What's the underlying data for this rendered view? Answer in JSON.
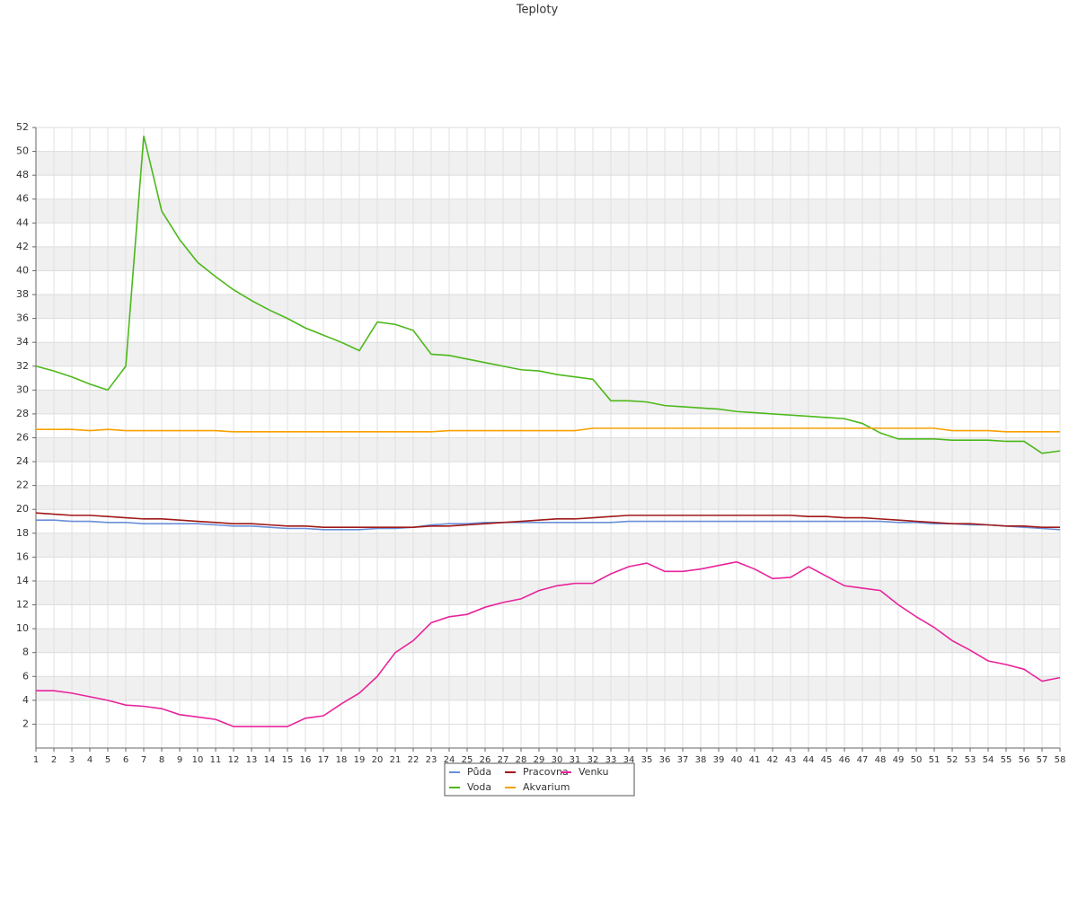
{
  "chart_data": {
    "type": "line",
    "title": "Teploty",
    "categories": [
      1,
      2,
      3,
      4,
      5,
      6,
      7,
      8,
      9,
      10,
      11,
      12,
      13,
      14,
      15,
      16,
      17,
      18,
      19,
      20,
      21,
      22,
      23,
      24,
      25,
      26,
      27,
      28,
      29,
      30,
      31,
      32,
      33,
      34,
      35,
      36,
      37,
      38,
      39,
      40,
      41,
      42,
      43,
      44,
      45,
      46,
      47,
      48,
      49,
      50,
      51,
      52,
      53,
      54,
      55,
      56,
      57,
      58
    ],
    "series": [
      {
        "name": "Půda",
        "color": "#6a8fd8",
        "values": [
          19.1,
          19.1,
          19.0,
          19.0,
          18.9,
          18.9,
          18.8,
          18.8,
          18.8,
          18.8,
          18.7,
          18.6,
          18.6,
          18.5,
          18.4,
          18.4,
          18.3,
          18.3,
          18.3,
          18.4,
          18.4,
          18.5,
          18.7,
          18.8,
          18.8,
          18.9,
          18.9,
          18.9,
          18.9,
          18.9,
          18.9,
          18.9,
          18.9,
          19.0,
          19.0,
          19.0,
          19.0,
          19.0,
          19.0,
          19.0,
          19.0,
          19.0,
          19.0,
          19.0,
          19.0,
          19.0,
          19.0,
          19.0,
          18.9,
          18.9,
          18.8,
          18.8,
          18.7,
          18.7,
          18.6,
          18.5,
          18.4,
          18.3
        ]
      },
      {
        "name": "Voda",
        "color": "#4cb81a",
        "values": [
          32.0,
          31.6,
          31.1,
          30.5,
          30.0,
          32.0,
          51.3,
          45.0,
          42.6,
          40.7,
          39.5,
          38.4,
          37.5,
          36.7,
          36.0,
          35.2,
          34.6,
          34.0,
          33.3,
          35.7,
          35.5,
          35.0,
          33.0,
          32.9,
          32.6,
          32.3,
          32.0,
          31.7,
          31.6,
          31.3,
          31.1,
          30.9,
          29.1,
          29.1,
          29.0,
          28.7,
          28.6,
          28.5,
          28.4,
          28.2,
          28.1,
          28.0,
          27.9,
          27.8,
          27.7,
          27.6,
          27.2,
          26.4,
          25.9,
          25.9,
          25.9,
          25.8,
          25.8,
          25.8,
          25.7,
          25.7,
          24.7,
          24.9
        ]
      },
      {
        "name": "Pracovna",
        "color": "#a01818",
        "values": [
          19.7,
          19.6,
          19.5,
          19.5,
          19.4,
          19.3,
          19.2,
          19.2,
          19.1,
          19.0,
          18.9,
          18.8,
          18.8,
          18.7,
          18.6,
          18.6,
          18.5,
          18.5,
          18.5,
          18.5,
          18.5,
          18.5,
          18.6,
          18.6,
          18.7,
          18.8,
          18.9,
          19.0,
          19.1,
          19.2,
          19.2,
          19.3,
          19.4,
          19.5,
          19.5,
          19.5,
          19.5,
          19.5,
          19.5,
          19.5,
          19.5,
          19.5,
          19.5,
          19.4,
          19.4,
          19.3,
          19.3,
          19.2,
          19.1,
          19.0,
          18.9,
          18.8,
          18.8,
          18.7,
          18.6,
          18.6,
          18.5,
          18.5
        ]
      },
      {
        "name": "Akvarium",
        "color": "#f8a000",
        "values": [
          26.7,
          26.7,
          26.7,
          26.6,
          26.7,
          26.6,
          26.6,
          26.6,
          26.6,
          26.6,
          26.6,
          26.5,
          26.5,
          26.5,
          26.5,
          26.5,
          26.5,
          26.5,
          26.5,
          26.5,
          26.5,
          26.5,
          26.5,
          26.6,
          26.6,
          26.6,
          26.6,
          26.6,
          26.6,
          26.6,
          26.6,
          26.8,
          26.8,
          26.8,
          26.8,
          26.8,
          26.8,
          26.8,
          26.8,
          26.8,
          26.8,
          26.8,
          26.8,
          26.8,
          26.8,
          26.8,
          26.8,
          26.8,
          26.8,
          26.8,
          26.8,
          26.6,
          26.6,
          26.6,
          26.5,
          26.5,
          26.5,
          26.5
        ]
      },
      {
        "name": "Venku",
        "color": "#e8239b",
        "values": [
          4.8,
          4.8,
          4.6,
          4.3,
          4.0,
          3.6,
          3.5,
          3.3,
          2.8,
          2.6,
          2.4,
          1.8,
          1.8,
          1.8,
          1.8,
          2.5,
          2.7,
          3.7,
          4.6,
          6.0,
          8.0,
          9.0,
          10.5,
          11.0,
          11.2,
          11.8,
          12.2,
          12.5,
          13.2,
          13.6,
          13.8,
          13.8,
          14.6,
          15.2,
          15.5,
          14.8,
          14.8,
          15.0,
          15.3,
          15.6,
          15.0,
          14.2,
          14.3,
          15.2,
          14.4,
          13.6,
          13.4,
          13.2,
          12.0,
          11.0,
          10.1,
          9.0,
          8.2,
          7.3,
          7.0,
          6.6,
          5.6,
          5.9
        ]
      }
    ],
    "ylim": [
      0,
      52
    ],
    "yticks": [
      2,
      4,
      6,
      8,
      10,
      12,
      14,
      16,
      18,
      20,
      22,
      24,
      26,
      28,
      30,
      32,
      34,
      36,
      38,
      40,
      42,
      44,
      46,
      48,
      50,
      52
    ],
    "grid": true
  }
}
